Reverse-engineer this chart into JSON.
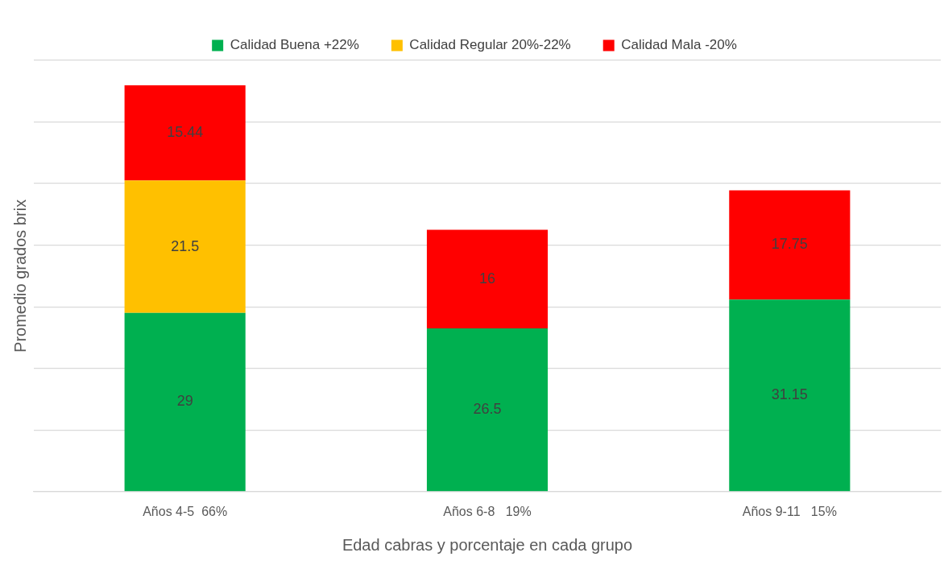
{
  "chart_data": {
    "type": "bar",
    "stacked": true,
    "xlabel": "Edad cabras y porcentaje en cada grupo",
    "ylabel": "Promedio grados brix",
    "categories": [
      "Años 4-5  66%",
      "Años 6-8   19%",
      "Años 9-11   15%"
    ],
    "series": [
      {
        "name": "Calidad Buena +22%",
        "color": "#00b050",
        "values": [
          29,
          26.5,
          31.15
        ]
      },
      {
        "name": "Calidad Regular 20%-22%",
        "color": "#ffc000",
        "values": [
          21.5,
          null,
          null
        ]
      },
      {
        "name": "Calidad Mala -20%",
        "color": "#ff0000",
        "values": [
          15.44,
          16,
          17.75
        ]
      }
    ],
    "ylim": [
      0,
      70
    ],
    "yticks": [
      {
        "value": 0,
        "label": null
      },
      {
        "value": 10,
        "label": null
      },
      {
        "value": 20,
        "label": null
      },
      {
        "value": 30,
        "label": null
      },
      {
        "value": 40,
        "label": null
      },
      {
        "value": 50,
        "label": null
      },
      {
        "value": 60,
        "label": null
      },
      {
        "value": 70,
        "label": null
      }
    ],
    "tick_labels": "x",
    "grid": "y",
    "legend": "top",
    "data_labels": true
  }
}
